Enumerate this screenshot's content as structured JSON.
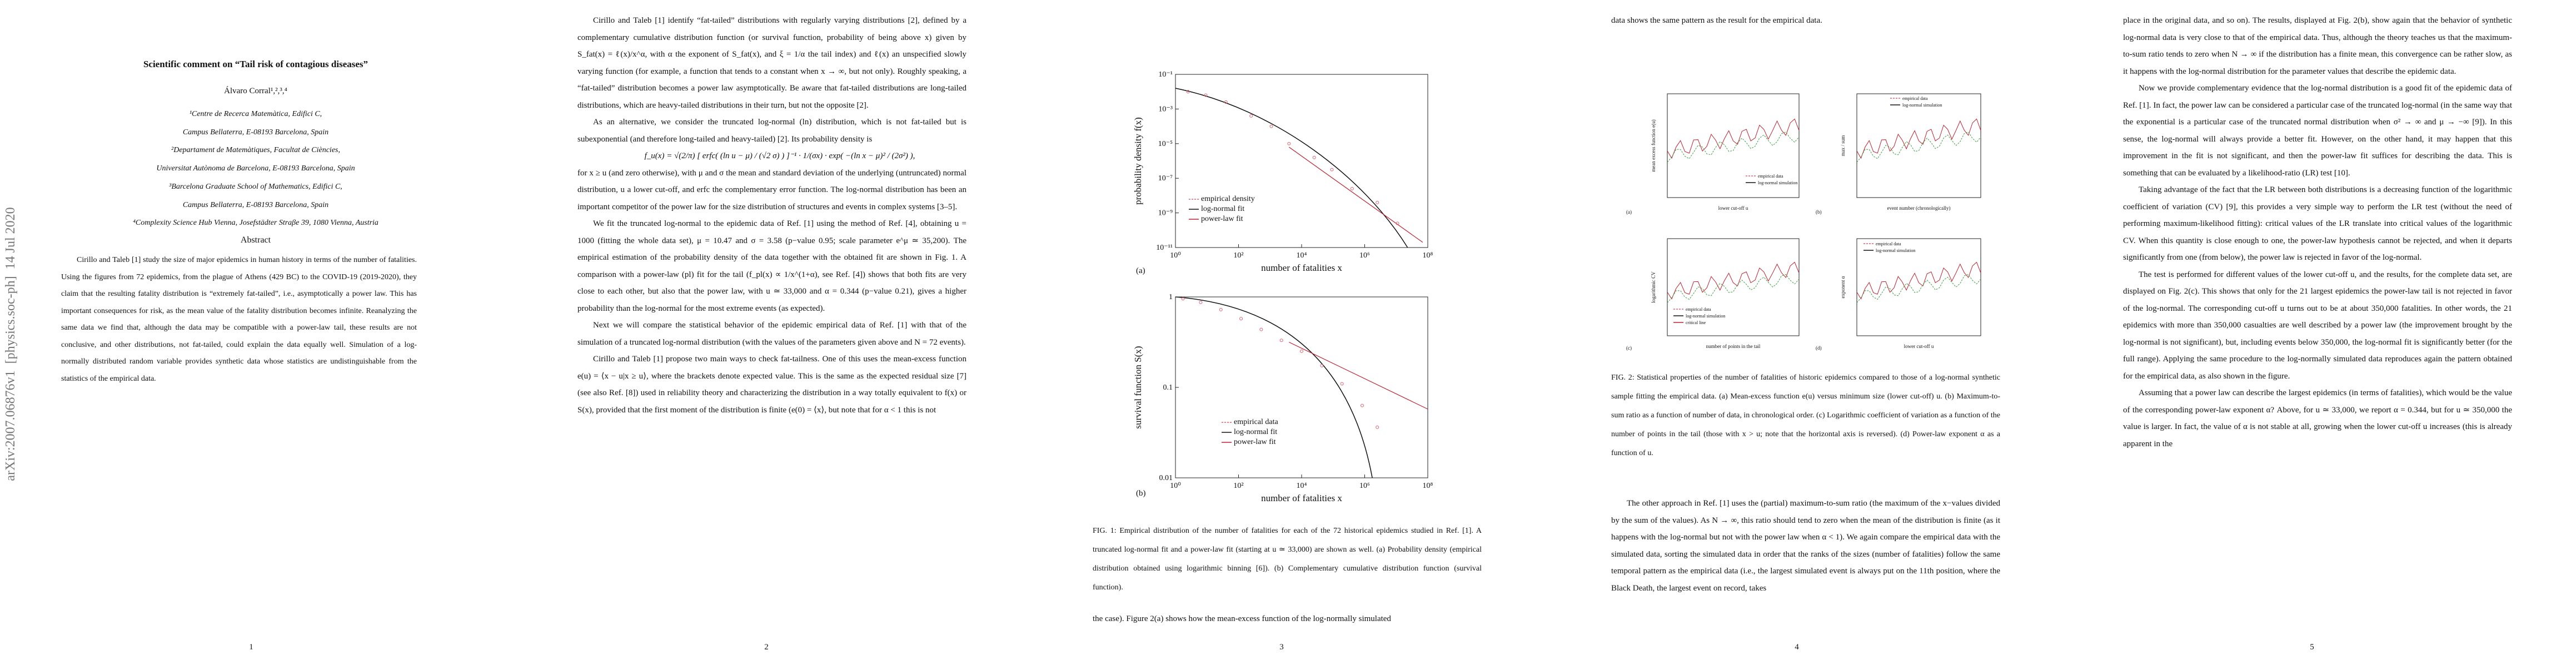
{
  "arxiv_stamp": "arXiv:2007.06876v1  [physics.soc-ph]  14 Jul 2020",
  "pages": [
    {
      "title": "Scientific comment on “Tail risk of contagious diseases”",
      "author": "Álvaro Corral¹,²,³,⁴",
      "affiliations": [
        "¹Centre de Recerca Matemàtica, Edifici C,",
        "Campus Bellaterra, E-08193 Barcelona, Spain",
        "²Departament de Matemàtiques, Facultat de Ciències,",
        "Universitat Autònoma de Barcelona, E-08193 Barcelona, Spain",
        "³Barcelona Graduate School of Mathematics, Edifici C,",
        "Campus Bellaterra, E-08193 Barcelona, Spain",
        "⁴Complexity Science Hub Vienna, Josefstädter Straβe 39, 1080 Vienna, Austria"
      ],
      "abstract_heading": "Abstract",
      "abstract": "Cirillo and Taleb [1] study the size of major epidemics in human history in terms of the number of fatalities. Using the figures from 72 epidemics, from the plague of Athens (429 BC) to the COVID-19 (2019-2020), they claim that the resulting fatality distribution is “extremely fat-tailed”, i.e., asymptotically a power law. This has important consequences for risk, as the mean value of the fatality distribution becomes infinite. Reanalyzing the same data we find that, although the data may be compatible with a power-law tail, these results are not conclusive, and other distributions, not fat-tailed, could explain the data equally well. Simulation of a log-normally distributed random variable provides synthetic data whose statistics are undistinguishable from the statistics of the empirical data.",
      "page_number": "1"
    },
    {
      "paragraphs": [
        "Cirillo and Taleb [1] identify “fat-tailed” distributions with regularly varying distributions [2], defined by a complementary cumulative distribution function (or survival function, probability of being above x) given by S_fat(x) = ℓ(x)/x^α, with α the exponent of S_fat(x), and ξ = 1/α the tail index) and ℓ(x) an unspecified slowly varying function (for example, a function that tends to a constant when x → ∞, but not only). Roughly speaking, a “fat-tailed” distribution becomes a power law asymptotically. Be aware that fat-tailed distributions are long-tailed distributions, which are heavy-tailed distributions in their turn, but not the opposite [2].",
        "As an alternative, we consider the truncated log-normal (ln) distribution, which is not fat-tailed but is subexponential (and therefore long-tailed and heavy-tailed) [2]. Its probability density is",
        "for x ≥ u (and zero otherwise), with μ and σ the mean and standard deviation of the underlying (untruncated) normal distribution, u a lower cut-off, and erfc the complementary error function. The log-normal distribution has been an important competitor of the power law for the size distribution of structures and events in complex systems [3–5].",
        "We fit the truncated log-normal to the epidemic data of Ref. [1] using the method of Ref. [4], obtaining u = 1000 (fitting the whole data set), μ = 10.47 and σ = 3.58 (p−value 0.95; scale parameter e^μ ≃ 35,200). The empirical estimation of the probability density of the data together with the obtained fit are shown in Fig. 1. A comparison with a power-law (pl) fit for the tail (f_pl(x) ∝ 1/x^(1+α), see Ref. [4]) shows that both fits are very close to each other, but also that the power law, with u ≃ 33,000 and α = 0.344 (p−value 0.21), gives a higher probability than the log-normal for the most extreme events (as expected).",
        "Next we will compare the statistical behavior of the epidemic empirical data of Ref. [1] with that of the simulation of a truncated log-normal distribution (with the values of the parameters given above and N = 72 events).",
        "Cirillo and Taleb [1] propose two main ways to check fat-tailness. One of this uses the mean-excess function e(u) = ⟨x − u|x ≥ u⟩, where the brackets denote expected value. This is the same as the expected residual size [7] (see also Ref. [8]) used in reliability theory and characterizing the distribution in a way totally equivalent to f(x) or S(x), provided that the first moment of the distribution is finite (e(0) = ⟨x⟩, but note that for α < 1 this is not"
      ],
      "equation": "f_u(x) = √(2/π) [ erfc( (ln u − μ) / (√2 σ) ) ]⁻¹ · 1/(σx) · exp( −(ln x − μ)² / (2σ²) ),",
      "page_number": "2"
    },
    {
      "figure_1": {
        "a": {
          "label": "(a)",
          "ylabel": "probability density f(x)",
          "xlabel": "number of fatalities x",
          "yticks": [
            "10⁻¹",
            "10⁻³",
            "10⁻⁵",
            "10⁻⁷",
            "10⁻⁹",
            "10⁻¹¹"
          ],
          "xticks": [
            "10⁰",
            "10²",
            "10⁴",
            "10⁶",
            "10⁸"
          ],
          "legend": [
            "empirical density",
            "log-normal fit",
            "power-law fit"
          ]
        },
        "b": {
          "label": "(b)",
          "ylabel": "survival function S(x)",
          "xlabel": "number of fatalities x",
          "yticks": [
            "1",
            "0.1",
            "0.01"
          ],
          "xticks": [
            "10⁰",
            "10²",
            "10⁴",
            "10⁶",
            "10⁸"
          ],
          "legend": [
            "empirical data",
            "log-normal fit",
            "power-law fit"
          ]
        }
      },
      "caption": "FIG. 1: Empirical distribution of the number of fatalities for each of the 72 historical epidemics studied in Ref. [1]. A truncated log-normal fit and a power-law fit (starting at u ≃ 33,000) are shown as well. (a) Probability density (empirical distribution obtained using logarithmic binning [6]). (b) Complementary cumulative distribution function (survival function).",
      "paragraphs": [
        "the case). Figure 2(a) shows how the mean-excess function of the log-normally simulated"
      ],
      "page_number": "3"
    },
    {
      "paragraphs": [
        "data shows the same pattern as the result for the empirical data.",
        "The other approach in Ref. [1] uses the (partial) maximum-to-sum ratio (the maximum of the x−values divided by the sum of the values). As N → ∞, this ratio should tend to zero when the mean of the distribution is finite (as it happens with the log-normal but not with the power law when α < 1). We again compare the empirical data with the simulated data, sorting the simulated data in order that the ranks of the sizes (number of fatalities) follow the same temporal pattern as the empirical data (i.e., the largest simulated event is always put on the 11th position, where the Black Death, the largest event on record, takes"
      ],
      "figure_2": {
        "a": {
          "label": "(a)",
          "ylabel": "mean excess function e(u)",
          "xlabel": "lower cut-off u",
          "legend": [
            "empirical data",
            "log-normal simulation"
          ]
        },
        "b": {
          "label": "(b)",
          "ylabel": "max / sum",
          "xlabel": "event number (chronologically)",
          "legend": [
            "empirical data",
            "log-normal simulation"
          ]
        },
        "c": {
          "label": "(c)",
          "ylabel": "logarithmic CV",
          "xlabel": "number of points in the tail",
          "legend": [
            "empirical data",
            "log-normal simulation",
            "critical line"
          ]
        },
        "d": {
          "label": "(d)",
          "ylabel": "exponent α",
          "xlabel": "lower cut-off u",
          "legend": [
            "empirical data",
            "log-normal simulation"
          ]
        }
      },
      "caption": "FIG. 2: Statistical properties of the number of fatalities of historic epidemics compared to those of a log-normal synthetic sample fitting the empirical data. (a) Mean-excess function e(u) versus minimum size (lower cut-off) u. (b) Maximum-to-sum ratio as a function of number of data, in chronological order. (c) Logarithmic coefficient of variation as a function of the number of points in the tail (those with x > u; note that the horizontal axis is reversed). (d) Power-law exponent α as a function of u.",
      "page_number": "4"
    },
    {
      "paragraphs": [
        "place in the original data, and so on). The results, displayed at Fig. 2(b), show again that the behavior of synthetic log-normal data is very close to that of the empirical data. Thus, although the theory teaches us that the maximum-to-sum ratio tends to zero when N → ∞ if the distribution has a finite mean, this convergence can be rather slow, as it happens with the log-normal distribution for the parameter values that describe the epidemic data.",
        "Now we provide complementary evidence that the log-normal distribution is a good fit of the epidemic data of Ref. [1]. In fact, the power law can be considered a particular case of the truncated log-normal (in the same way that the exponential is a particular case of the truncated normal distribution when σ² → ∞ and μ → −∞ [9]). In this sense, the log-normal will always provide a better fit. However, on the other hand, it may happen that this improvement in the fit is not significant, and then the power-law fit suffices for describing the data. This is something that can be evaluated by a likelihood-ratio (LR) test [10].",
        "Taking advantage of the fact that the LR between both distributions is a decreasing function of the logarithmic coefficient of variation (CV) [9], this provides a very simple way to perform the LR test (without the need of performing maximum-likelihood fitting): critical values of the LR translate into critical values of the logarithmic CV. When this quantity is close enough to one, the power-law hypothesis cannot be rejected, and when it departs significantly from one (from below), the power law is rejected in favor of the log-normal.",
        "The test is performed for different values of the lower cut-off u, and the results, for the complete data set, are displayed on Fig. 2(c). This shows that only for the 21 largest epidemics the power-law tail is not rejected in favor of the log-normal. The corresponding cut-off u turns out to be at about 350,000 fatalities. In other words, the 21 epidemics with more than 350,000 casualties are well described by a power law (the improvement brought by the log-normal is not significant), but, including events below 350,000, the log-normal fit is significantly better (for the full range). Applying the same procedure to the log-normally simulated data reproduces again the pattern obtained for the empirical data, as also shown in the figure.",
        "Assuming that a power law can describe the largest epidemics (in terms of fatalities), which would be the value of the corresponding power-law exponent α? Above, for u ≃ 33,000, we report α = 0.344, but for u ≃ 350,000 the value is larger. In fact, the value of α is not stable at all, growing when the lower cut-off u increases (this is already apparent in the"
      ],
      "page_number": "5"
    }
  ]
}
